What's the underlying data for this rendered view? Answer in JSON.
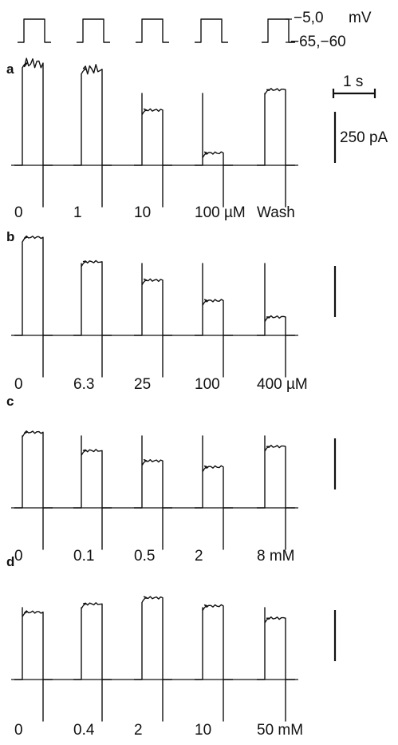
{
  "protocol": {
    "top_label": "−5,0",
    "unit": "mV",
    "bottom_label": "−65,−60",
    "step_count": 5
  },
  "scale_bars": {
    "time_label": "1 s",
    "current_label": "250 pA"
  },
  "chart_data": [
    {
      "type": "line",
      "panel": "a",
      "categories": [
        "0",
        "1",
        "10",
        "100 µM",
        "Wash"
      ],
      "series": [
        {
          "values": [
            500,
            470,
            270,
            60,
            370
          ]
        }
      ]
    },
    {
      "type": "line",
      "panel": "b",
      "categories": [
        "0",
        "6.3",
        "25",
        "100",
        "400 µM"
      ],
      "series": [
        {
          "values": [
            480,
            360,
            270,
            170,
            90
          ]
        }
      ]
    },
    {
      "type": "line",
      "panel": "c",
      "categories": [
        "0",
        "0.1",
        "0.5",
        "2",
        "8 mM"
      ],
      "series": [
        {
          "values": [
            370,
            280,
            230,
            200,
            300
          ]
        }
      ]
    },
    {
      "type": "line",
      "panel": "d",
      "categories": [
        "0",
        "0.4",
        "2",
        "10",
        "50 mM"
      ],
      "series": [
        {
          "values": [
            330,
            370,
            400,
            360,
            300
          ]
        }
      ]
    }
  ]
}
